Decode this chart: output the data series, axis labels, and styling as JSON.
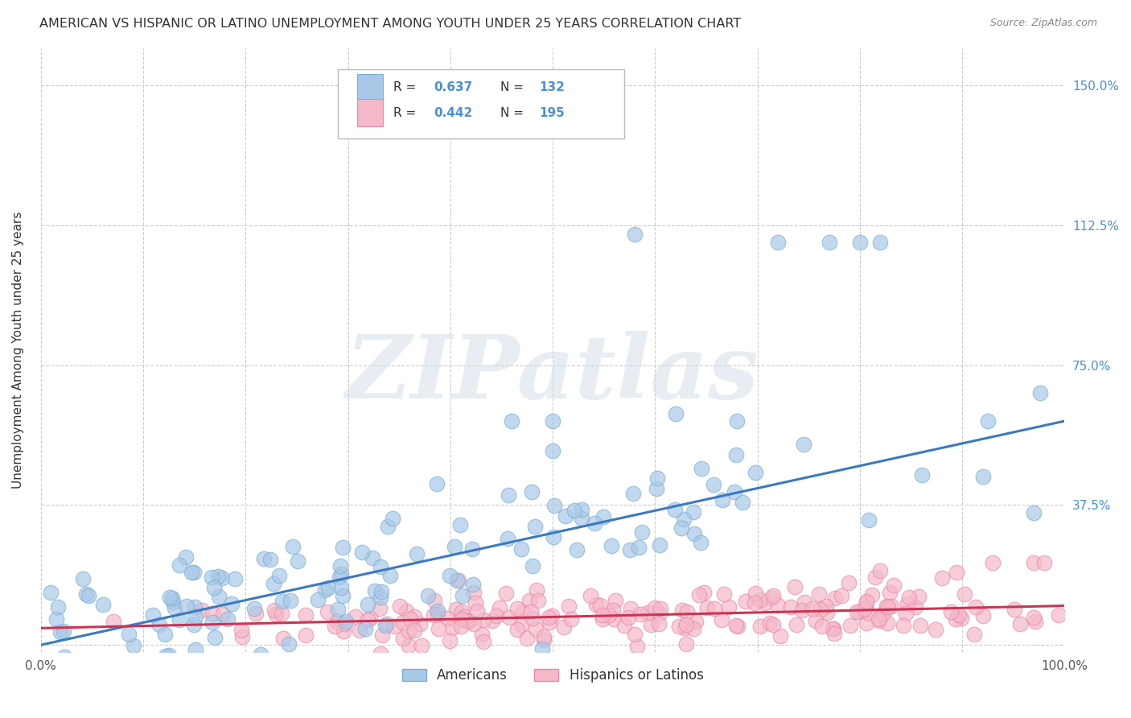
{
  "title": "AMERICAN VS HISPANIC OR LATINO UNEMPLOYMENT AMONG YOUTH UNDER 25 YEARS CORRELATION CHART",
  "source": "Source: ZipAtlas.com",
  "ylabel": "Unemployment Among Youth under 25 years",
  "xlim": [
    0,
    1.0
  ],
  "ylim": [
    -0.02,
    1.6
  ],
  "ytick_positions": [
    0.0,
    0.375,
    0.75,
    1.125,
    1.5
  ],
  "ytick_labels": [
    "",
    "37.5%",
    "75.0%",
    "112.5%",
    "150.0%"
  ],
  "blue_color": "#a8c8e8",
  "blue_edge_color": "#7bafd4",
  "pink_color": "#f5b8c8",
  "pink_edge_color": "#e888a8",
  "blue_line_color": "#3a7abf",
  "pink_line_color": "#cc3355",
  "watermark": "ZIPatlas",
  "label_americans": "Americans",
  "label_hispanics": "Hispanics or Latinos",
  "blue_N": 132,
  "pink_N": 195,
  "blue_slope": 0.6,
  "blue_intercept": 0.0,
  "pink_slope": 0.06,
  "pink_intercept": 0.045,
  "background_color": "#ffffff",
  "grid_color": "#cccccc",
  "title_color": "#333333",
  "right_ytick_color": "#4a90d9",
  "legend_text_color": "#4a90d9",
  "legend_label_color": "#333333"
}
